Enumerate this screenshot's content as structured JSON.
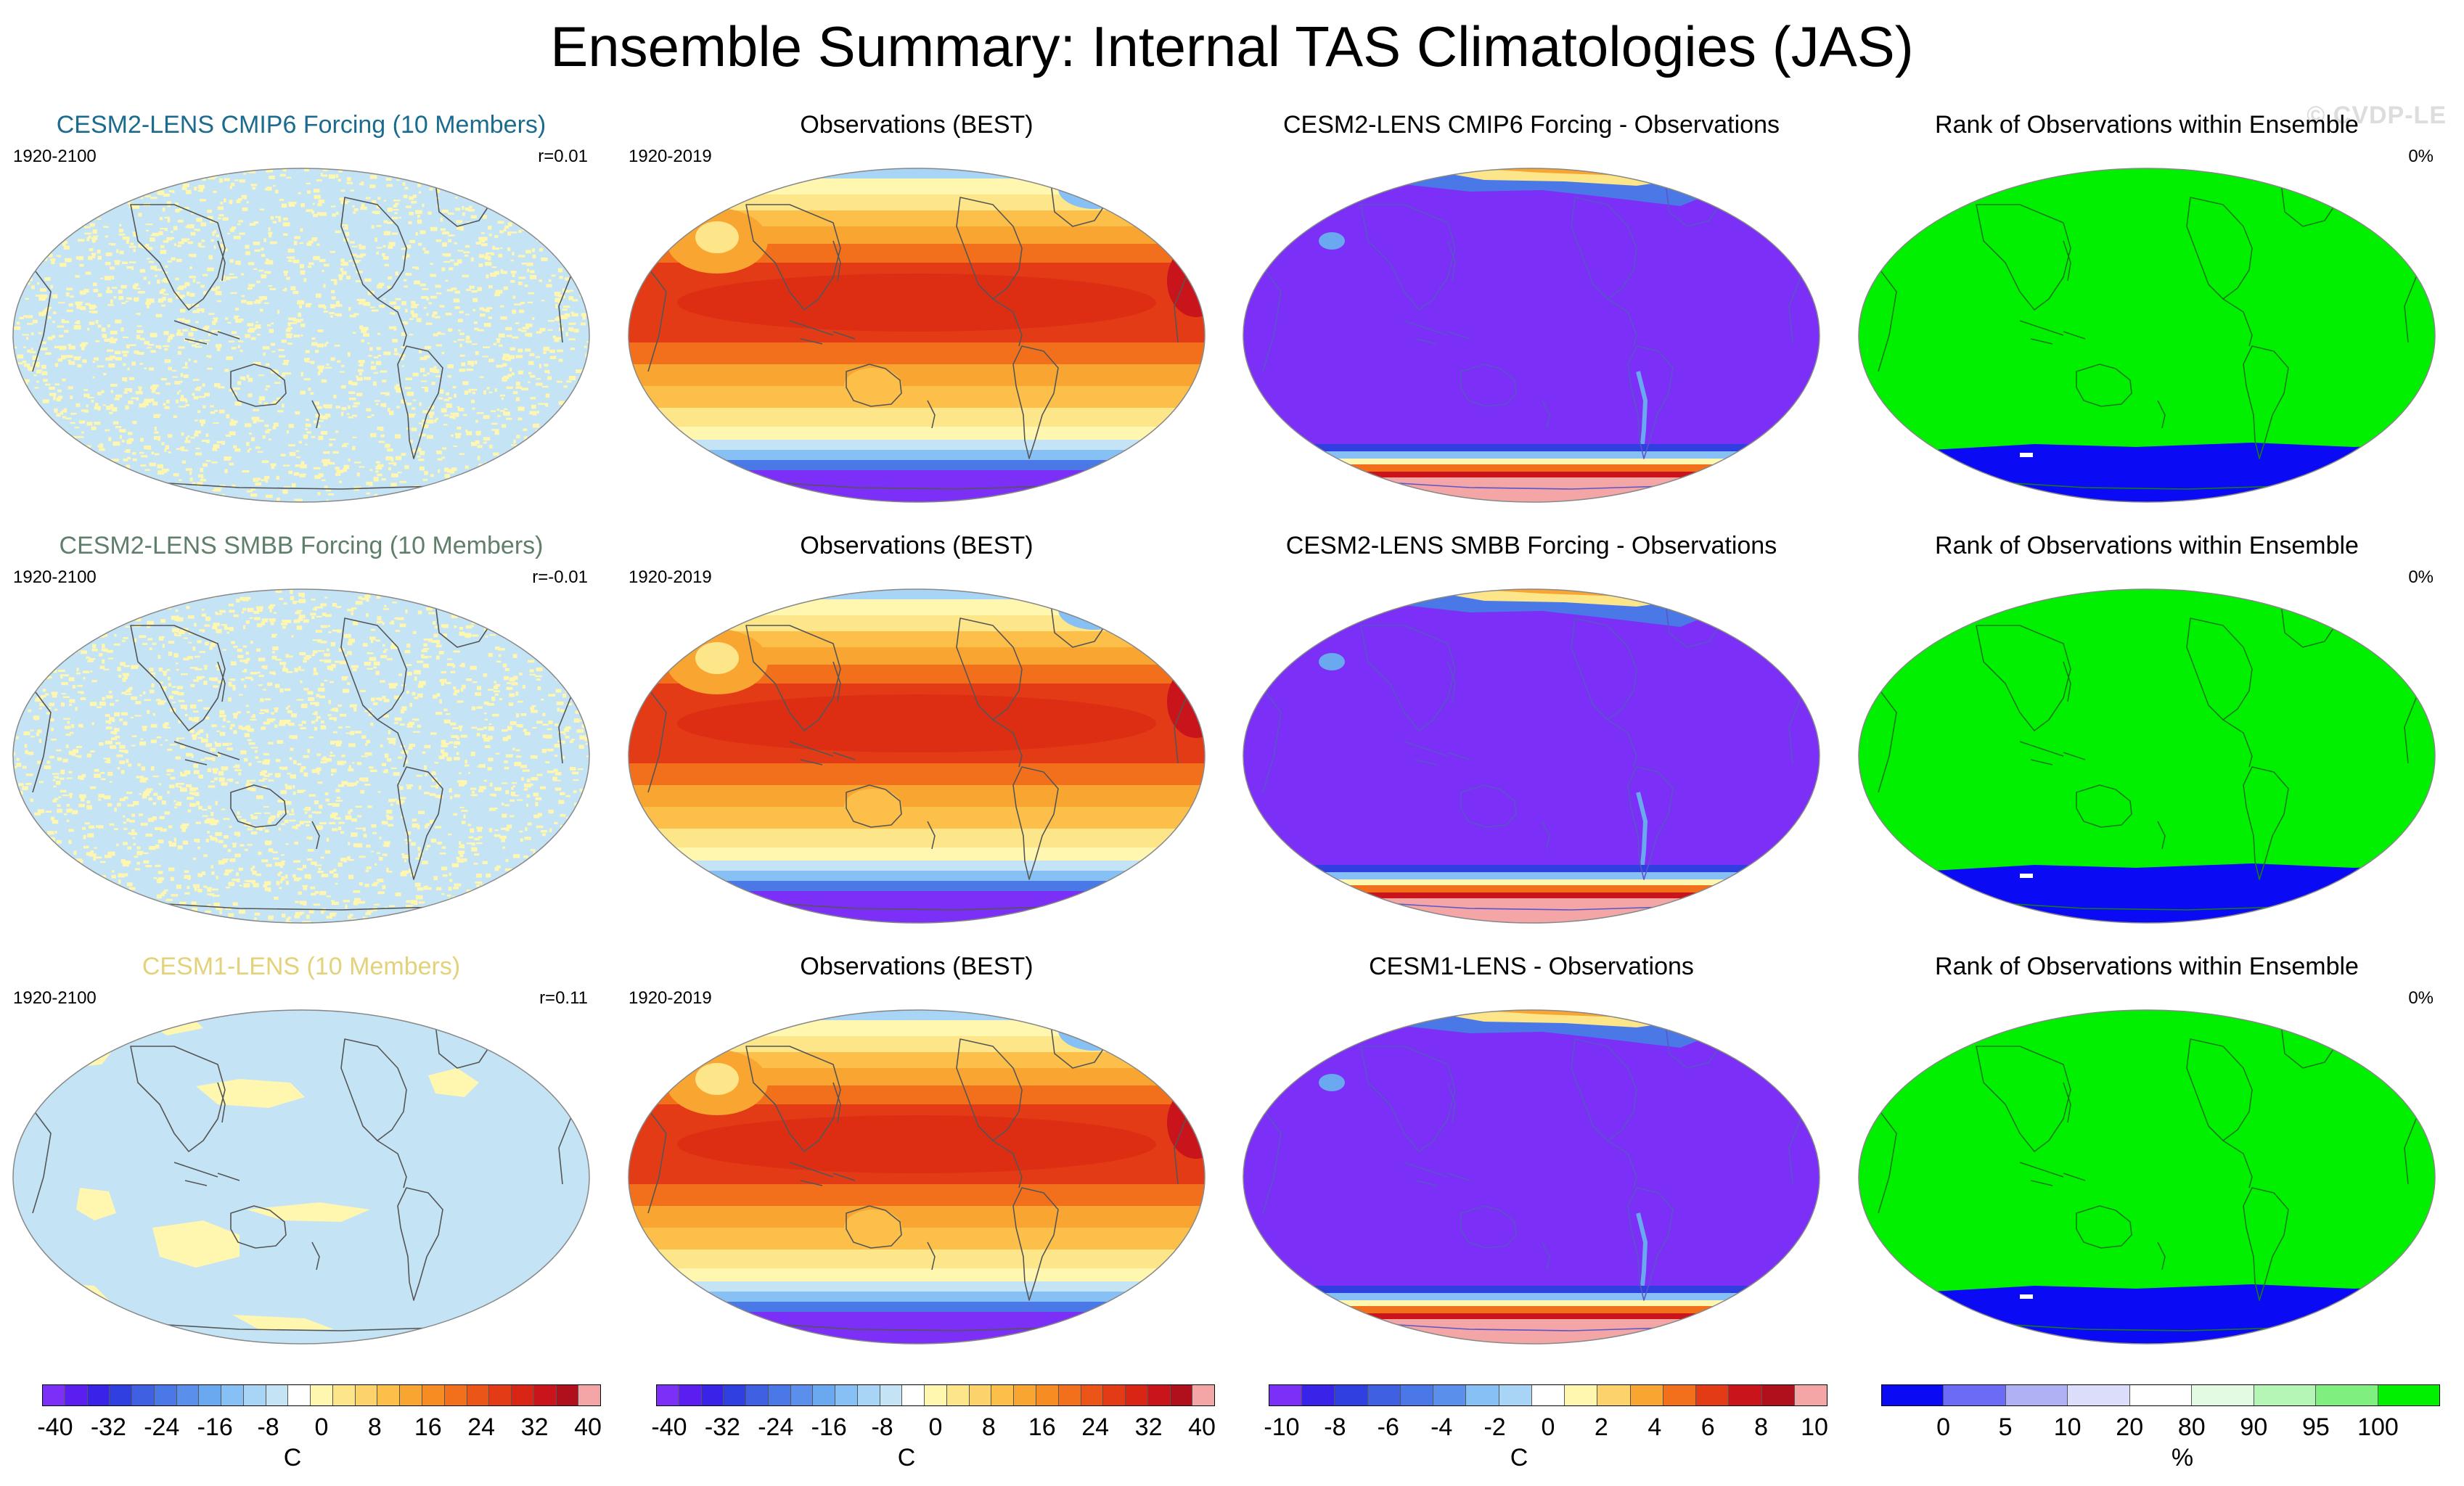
{
  "title": "Ensemble Summary: Internal TAS Climatologies (JAS)",
  "watermark": "© CVDP-LE",
  "rows": [
    {
      "panels": [
        {
          "title": "CESM2-LENS CMIP6 Forcing (10 Members)",
          "title_color": "#1b6b8f",
          "left": "1920-2100",
          "right": "r=0.01",
          "style": "noise"
        },
        {
          "title": "Observations (BEST)",
          "title_color": "#000000",
          "left": "1920-2019",
          "right": "",
          "style": "temp"
        },
        {
          "title": "CESM2-LENS CMIP6 Forcing - Observations",
          "title_color": "#000000",
          "left": "",
          "right": "",
          "style": "diff"
        },
        {
          "title": "Rank of Observations within Ensemble",
          "title_color": "#000000",
          "left": "",
          "right": "0%",
          "style": "rank"
        }
      ]
    },
    {
      "panels": [
        {
          "title": "CESM2-LENS SMBB Forcing (10 Members)",
          "title_color": "#5f7f6b",
          "left": "1920-2100",
          "right": "r=-0.01",
          "style": "noise"
        },
        {
          "title": "Observations (BEST)",
          "title_color": "#000000",
          "left": "1920-2019",
          "right": "",
          "style": "temp"
        },
        {
          "title": "CESM2-LENS SMBB Forcing - Observations",
          "title_color": "#000000",
          "left": "",
          "right": "",
          "style": "diff"
        },
        {
          "title": "Rank of Observations within Ensemble",
          "title_color": "#000000",
          "left": "",
          "right": "0%",
          "style": "rank"
        }
      ]
    },
    {
      "panels": [
        {
          "title": "CESM1-LENS (10 Members)",
          "title_color": "#e3d27a",
          "left": "1920-2100",
          "right": "r=0.11",
          "style": "blobs"
        },
        {
          "title": "Observations (BEST)",
          "title_color": "#000000",
          "left": "1920-2019",
          "right": "",
          "style": "temp"
        },
        {
          "title": "CESM1-LENS - Observations",
          "title_color": "#000000",
          "left": "",
          "right": "",
          "style": "diff"
        },
        {
          "title": "Rank of Observations within Ensemble",
          "title_color": "#000000",
          "left": "",
          "right": "0%",
          "style": "rank"
        }
      ]
    }
  ],
  "colorbars": [
    {
      "name": "tas-colorbar-1",
      "colors": [
        "#7b2ff7",
        "#5a1ff0",
        "#3a23e8",
        "#2f3fe0",
        "#3f60e0",
        "#4a78e6",
        "#5a90ec",
        "#6aa8f0",
        "#86c0f4",
        "#a8d4f6",
        "#c4e4f6",
        "#ffffff",
        "#fff6b0",
        "#fde68a",
        "#fcd26a",
        "#fbbf4a",
        "#f9a531",
        "#f68c22",
        "#f2701c",
        "#ec5518",
        "#e33b16",
        "#d82514",
        "#c8141a",
        "#b0101c",
        "#f4a6a6"
      ],
      "ticks": [
        "-40",
        "-32",
        "-24",
        "-16",
        "-8",
        "0",
        "8",
        "16",
        "24",
        "32",
        "40"
      ],
      "unit": "C"
    },
    {
      "name": "tas-colorbar-2",
      "colors": [
        "#7b2ff7",
        "#5a1ff0",
        "#3a23e8",
        "#2f3fe0",
        "#3f60e0",
        "#4a78e6",
        "#5a90ec",
        "#6aa8f0",
        "#86c0f4",
        "#a8d4f6",
        "#c4e4f6",
        "#ffffff",
        "#fff6b0",
        "#fde68a",
        "#fcd26a",
        "#fbbf4a",
        "#f9a531",
        "#f68c22",
        "#f2701c",
        "#ec5518",
        "#e33b16",
        "#d82514",
        "#c8141a",
        "#b0101c",
        "#f4a6a6"
      ],
      "ticks": [
        "-40",
        "-32",
        "-24",
        "-16",
        "-8",
        "0",
        "8",
        "16",
        "24",
        "32",
        "40"
      ],
      "unit": "C"
    },
    {
      "name": "diff-colorbar",
      "colors": [
        "#7b2ff7",
        "#3a23e8",
        "#2f3fe0",
        "#3f60e0",
        "#4a78e6",
        "#5a90ec",
        "#86c0f4",
        "#a8d4f6",
        "#ffffff",
        "#fff6b0",
        "#fcd26a",
        "#f9a531",
        "#f2701c",
        "#e33b16",
        "#c8141a",
        "#b0101c",
        "#f4a6a6"
      ],
      "ticks": [
        "-10",
        "-8",
        "-6",
        "-4",
        "-2",
        "0",
        "2",
        "4",
        "6",
        "8",
        "10"
      ],
      "unit": "C"
    },
    {
      "name": "rank-colorbar",
      "colors": [
        "#0a0af5",
        "#6b6bf5",
        "#b0b0f5",
        "#dcdcfb",
        "#ffffff",
        "#e2fbe2",
        "#b5f5b5",
        "#7ff07f",
        "#00f000"
      ],
      "ticks": [
        "0",
        "5",
        "10",
        "20",
        "80",
        "90",
        "95",
        "100"
      ],
      "unit": "%"
    }
  ]
}
